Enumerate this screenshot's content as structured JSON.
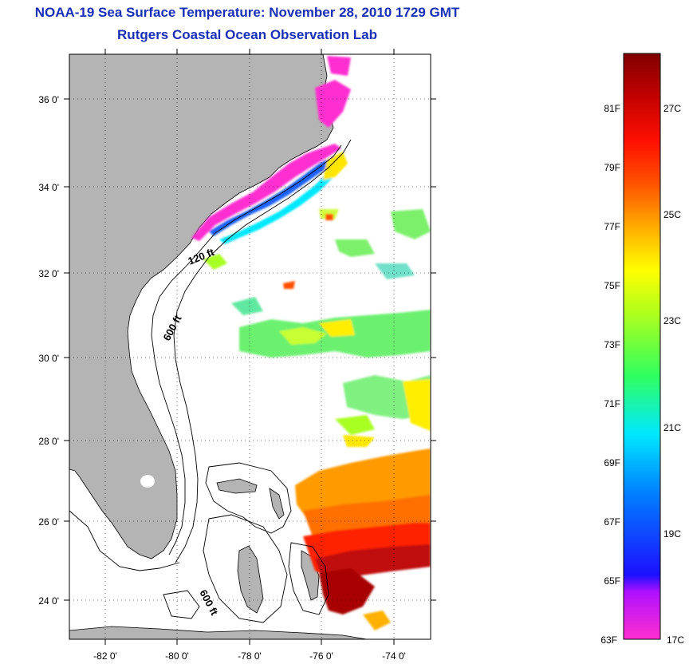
{
  "header": {
    "title": "NOAA-19 Sea Surface Temperature:  November 28, 2010 1729 GMT",
    "subtitle": "Rutgers Coastal Ocean Observation Lab"
  },
  "map": {
    "lon_ticks": [
      "-82 0'",
      "-80 0'",
      "-78 0'",
      "-76 0'",
      "-74 0'"
    ],
    "lat_ticks": [
      "36 0'",
      "34 0'",
      "32 0'",
      "30 0'",
      "28 0'",
      "26 0'",
      "24 0'"
    ],
    "lon_range": [
      -83,
      -73
    ],
    "lat_range": [
      23,
      37
    ],
    "depth_labels": [
      "120 ft",
      "600 ft",
      "600 ft"
    ],
    "land_color": "#b4b4b4",
    "grid": "dotted"
  },
  "colorbar": {
    "fahrenheit_labels": [
      "81F",
      "79F",
      "77F",
      "75F",
      "73F",
      "71F",
      "69F",
      "67F",
      "65F",
      "63F"
    ],
    "celsius_labels": [
      "27C",
      "25C",
      "23C",
      "21C",
      "19C",
      "17C"
    ],
    "min_label_f": "63F",
    "min_label_c": "17C",
    "colors": [
      "#ff2fd0",
      "#7a00ff",
      "#1d10ff",
      "#0080ff",
      "#00e8ff",
      "#30ff60",
      "#a8ff20",
      "#ffff00",
      "#ffb000",
      "#ff5000",
      "#ff1000",
      "#c00000",
      "#800000"
    ]
  }
}
